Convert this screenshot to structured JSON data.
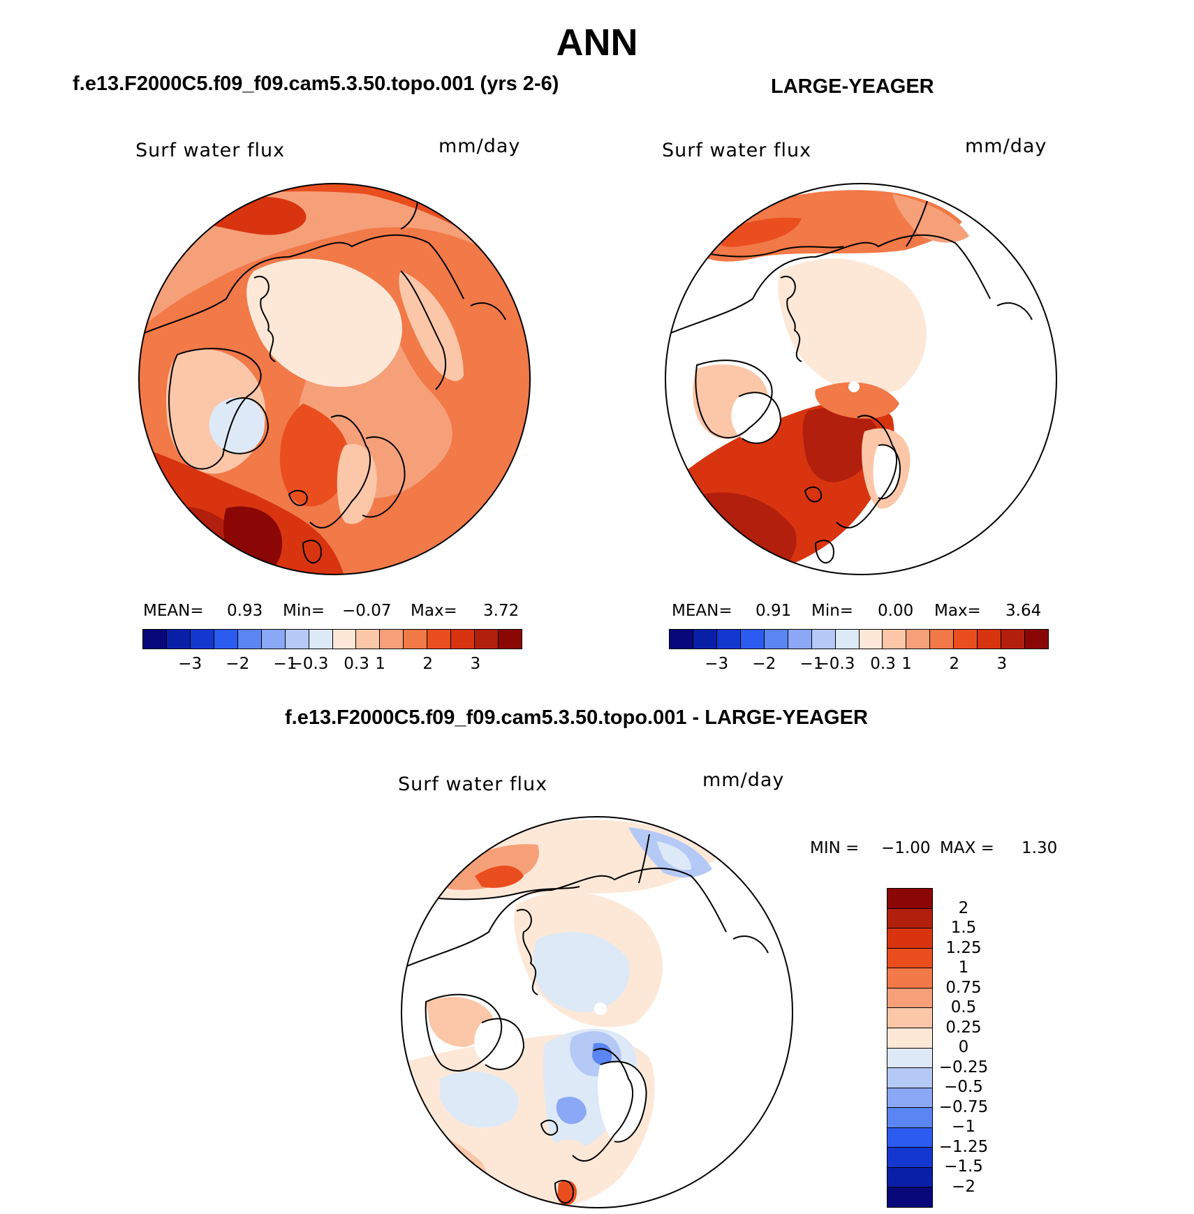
{
  "title": "ANN",
  "panel_left": {
    "case_title": "f.e13.F2000C5.f09_f09.cam5.3.50.topo.001 (yrs 2-6)",
    "variable": "Surf water flux",
    "units": "mm/day",
    "stats": {
      "mean_label": "MEAN=",
      "mean": "0.93",
      "min_label": "Min=",
      "min": "−0.07",
      "max_label": "Max=",
      "max": "3.72"
    }
  },
  "panel_right": {
    "case_title": "LARGE-YEAGER",
    "variable": "Surf water flux",
    "units": "mm/day",
    "stats": {
      "mean_label": "MEAN=",
      "mean": "0.91",
      "min_label": "Min=",
      "min": "0.00",
      "max_label": "Max=",
      "max": "3.64"
    }
  },
  "panel_diff": {
    "case_title": "f.e13.F2000C5.f09_f09.cam5.3.50.topo.001 - LARGE-YEAGER",
    "variable": "Surf water flux",
    "units": "mm/day",
    "minmax": {
      "min_label": "MIN =",
      "min": "−1.00",
      "max_label": "MAX =",
      "max": "1.30"
    }
  },
  "colorbar_top": {
    "colors": [
      "#08087a",
      "#0a1fa8",
      "#1437d0",
      "#2c5bef",
      "#5b85f2",
      "#8aa8f5",
      "#b5c9f7",
      "#dde9f7",
      "#fde8d8",
      "#fbc7a8",
      "#f6a07a",
      "#f27948",
      "#ea4e1f",
      "#d83410",
      "#b21f0c",
      "#8a0706"
    ],
    "labels": [
      "−3",
      "−2",
      "−1",
      "−0.3",
      "0.3",
      "1",
      "2",
      "3"
    ]
  },
  "colorbar_diff": {
    "colors": [
      "#8a0706",
      "#b21f0c",
      "#d83410",
      "#ea4e1f",
      "#f27948",
      "#f6a07a",
      "#fbc7a8",
      "#fde8d8",
      "#dde9f7",
      "#b5c9f7",
      "#8aa8f5",
      "#5b85f2",
      "#2c5bef",
      "#1437d0",
      "#0a1fa8",
      "#08087a"
    ],
    "labels": [
      "2",
      "1.5",
      "1.25",
      "1",
      "0.75",
      "0.5",
      "0.25",
      "0",
      "−0.25",
      "−0.5",
      "−0.75",
      "−1",
      "−1.25",
      "−1.5",
      "−2"
    ]
  }
}
